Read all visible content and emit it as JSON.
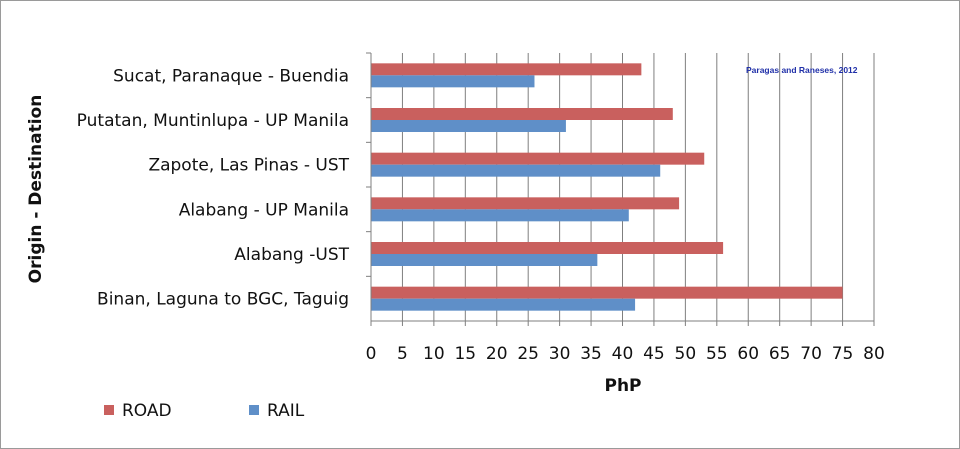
{
  "chart_data": {
    "type": "bar",
    "orientation": "horizontal",
    "categories": [
      "Sucat, Paranaque - Buendia",
      "Putatan, Muntinlupa - UP Manila",
      "Zapote, Las Pinas - UST",
      "Alabang - UP Manila",
      "Alabang -UST",
      "Binan, Laguna to BGC, Taguig"
    ],
    "series": [
      {
        "name": "ROAD",
        "color": "#c9605e",
        "values": [
          43,
          48,
          53,
          49,
          56,
          75
        ]
      },
      {
        "name": "RAIL",
        "color": "#5f8fc8",
        "values": [
          26,
          31,
          46,
          41,
          36,
          42
        ]
      }
    ],
    "xlabel": "PhP",
    "ylabel": "Origin - Destination",
    "xlim": [
      0,
      80
    ],
    "xticks": [
      "0",
      "5",
      "10",
      "15",
      "20",
      "25",
      "30",
      "35",
      "40",
      "45",
      "50",
      "55",
      "60",
      "65",
      "70",
      "75",
      "80"
    ],
    "grid": "vertical",
    "legend": "bottom-left",
    "annotation": {
      "text": "Paragas and Raneses, 2012",
      "color": "#1f2fa8",
      "placement": "top-right"
    }
  }
}
